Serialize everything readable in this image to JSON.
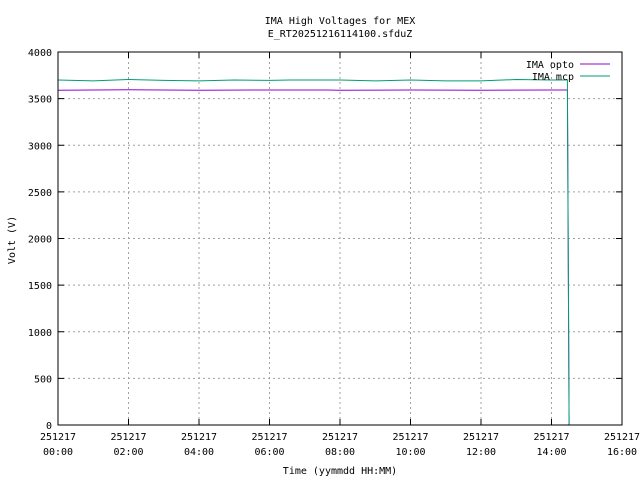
{
  "chart_data": {
    "type": "line",
    "title": "IMA High Voltages for MEX",
    "subtitle": "E_RT20251216114100.sfduZ",
    "xlabel": "Time (yymmdd HH:MM)",
    "ylabel": "Volt (V)",
    "xlim": [
      0,
      16
    ],
    "ylim": [
      0,
      4000
    ],
    "grid": true,
    "legend_position": "top-right",
    "x_ticks": [
      {
        "top": "251217",
        "bottom": "00:00"
      },
      {
        "top": "251217",
        "bottom": "02:00"
      },
      {
        "top": "251217",
        "bottom": "04:00"
      },
      {
        "top": "251217",
        "bottom": "06:00"
      },
      {
        "top": "251217",
        "bottom": "08:00"
      },
      {
        "top": "251217",
        "bottom": "10:00"
      },
      {
        "top": "251217",
        "bottom": "12:00"
      },
      {
        "top": "251217",
        "bottom": "14:00"
      },
      {
        "top": "251217",
        "bottom": "16:00"
      }
    ],
    "y_ticks": [
      "0",
      "500",
      "1000",
      "1500",
      "2000",
      "2500",
      "3000",
      "3500",
      "4000"
    ],
    "series": [
      {
        "name": "IMA opto",
        "color": "#9400d3",
        "x": [
          0.0,
          2.0,
          4.0,
          6.0,
          7.6,
          8.0,
          10.0,
          12.0,
          13.9,
          14.45,
          14.5
        ],
        "y": [
          3590,
          3595,
          3590,
          3592,
          3592,
          3590,
          3592,
          3590,
          3593,
          3592,
          0
        ]
      },
      {
        "name": "IMA mcp",
        "color": "#009e73",
        "x": [
          0.0,
          1.0,
          2.0,
          3.0,
          4.0,
          5.0,
          6.0,
          6.6,
          7.6,
          8.0,
          9.0,
          10.0,
          11.0,
          12.0,
          13.0,
          14.0,
          14.45,
          14.5
        ],
        "y": [
          3700,
          3690,
          3705,
          3695,
          3690,
          3700,
          3695,
          3700,
          3700,
          3700,
          3690,
          3700,
          3690,
          3690,
          3705,
          3700,
          3700,
          0
        ]
      }
    ]
  }
}
